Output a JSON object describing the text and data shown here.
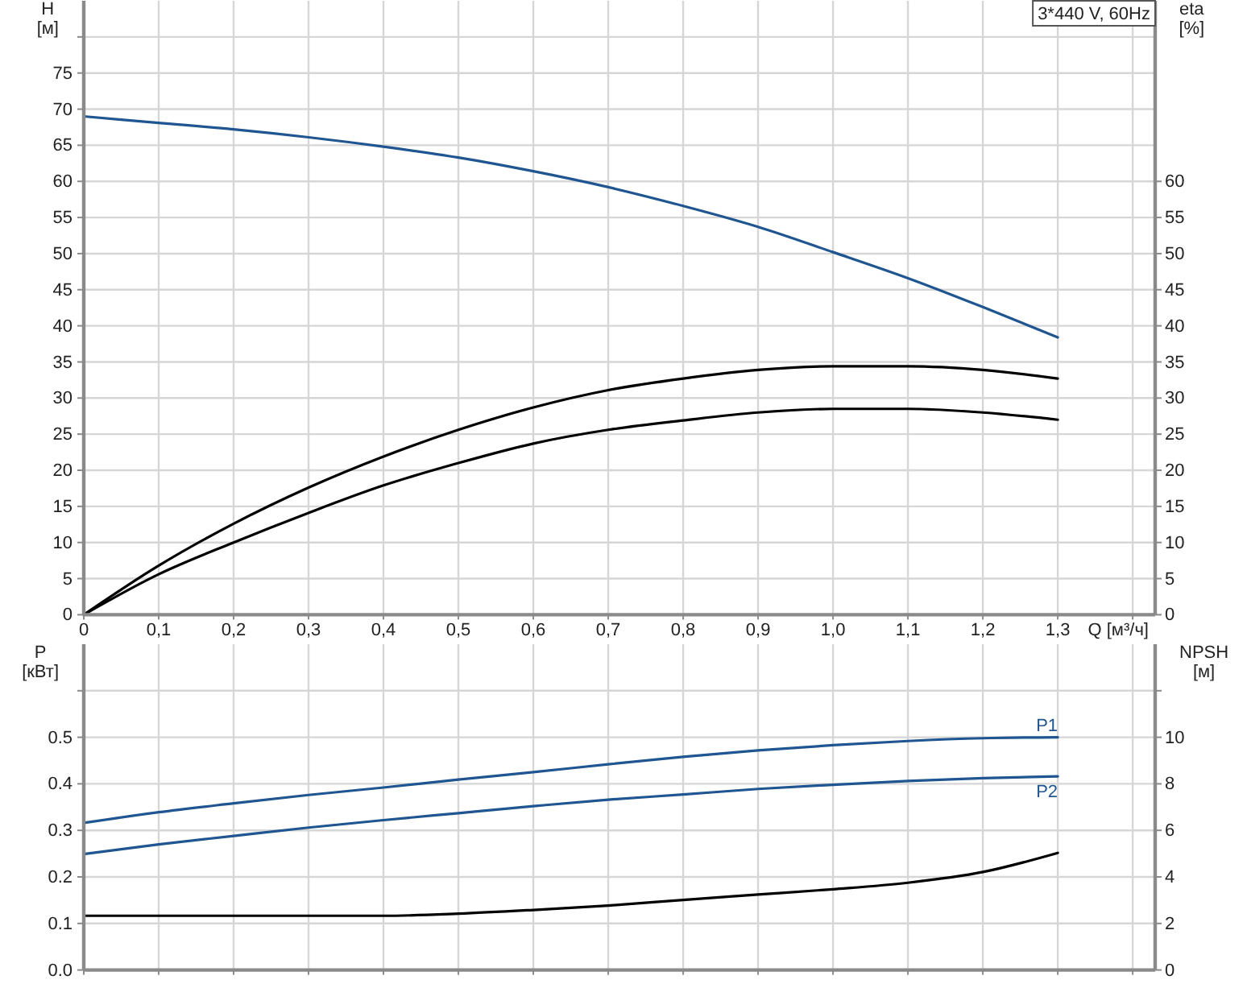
{
  "chart_data": [
    {
      "type": "line",
      "xlabel": "Q [м³/ч]",
      "ylabel": "H [м]",
      "y2label": "eta [%]",
      "annotations": [
        "3*440 V, 60Hz"
      ],
      "x": [
        0,
        0.1,
        0.2,
        0.3,
        0.4,
        0.5,
        0.6,
        0.7,
        0.8,
        0.9,
        1.0,
        1.1,
        1.2,
        1.3
      ],
      "xlim": [
        0,
        1.43
      ],
      "xticks": [
        0,
        {
          "value": 0.1,
          "label": "0,1"
        },
        {
          "value": 0.2,
          "label": "0,2"
        },
        {
          "value": 0.3,
          "label": "0,3"
        },
        {
          "value": 0.4,
          "label": "0,4"
        },
        {
          "value": 0.5,
          "label": "0,5"
        },
        {
          "value": 0.6,
          "label": "0,6"
        },
        {
          "value": 0.7,
          "label": "0,7"
        },
        {
          "value": 0.8,
          "label": "0,8"
        },
        {
          "value": 0.9,
          "label": "0,9"
        },
        {
          "value": 1.0,
          "label": "1,0"
        },
        {
          "value": 1.1,
          "label": "1,1"
        },
        {
          "value": 1.2,
          "label": "1,2"
        },
        {
          "value": 1.3,
          "label": "1,3"
        },
        {
          "value": 1.4,
          "label": null
        }
      ],
      "ylim": [
        0,
        85
      ],
      "yticks": [
        0,
        5,
        10,
        15,
        20,
        25,
        30,
        35,
        40,
        45,
        50,
        55,
        60,
        65,
        70,
        75,
        {
          "value": 80,
          "label": null
        }
      ],
      "y2lim": [
        0,
        85
      ],
      "y2ticks": [
        0,
        5,
        10,
        15,
        20,
        25,
        30,
        35,
        40,
        45,
        50,
        55,
        60
      ],
      "grid": true,
      "series": [
        {
          "color": "#1f5590",
          "values": [
            69.0,
            68.1,
            67.2,
            66.1,
            64.8,
            63.3,
            61.4,
            59.2,
            56.6,
            53.7,
            50.2,
            46.6,
            42.6,
            38.4
          ]
        },
        {
          "color": "#000000",
          "axis": "y2",
          "values": [
            0,
            6.8,
            12.6,
            17.6,
            21.9,
            25.6,
            28.7,
            31.1,
            32.7,
            33.9,
            34.4,
            34.4,
            33.9,
            32.7
          ]
        },
        {
          "color": "#000000",
          "axis": "y2",
          "values": [
            0,
            5.6,
            10.0,
            14.1,
            17.9,
            21.0,
            23.7,
            25.6,
            26.9,
            28.0,
            28.5,
            28.5,
            28.0,
            27.0
          ]
        }
      ]
    },
    {
      "type": "line",
      "ylabel": "P [кВт]",
      "y2label": "NPSH [м]",
      "x": [
        0,
        0.1,
        0.2,
        0.3,
        0.4,
        0.5,
        0.6,
        0.7,
        0.8,
        0.9,
        1.0,
        1.1,
        1.2,
        1.3
      ],
      "xlim": [
        0,
        1.43
      ],
      "xticks": [
        0,
        0.1,
        0.2,
        0.3,
        0.4,
        0.5,
        0.6,
        0.7,
        0.8,
        0.9,
        1.0,
        1.1,
        1.2,
        1.3,
        1.4
      ],
      "ylim": [
        0,
        0.7
      ],
      "yticks": [
        {
          "value": 0,
          "label": "0.0"
        },
        0.1,
        0.2,
        0.3,
        0.4,
        0.5,
        {
          "value": 0.6,
          "label": null
        }
      ],
      "y2lim": [
        0,
        14
      ],
      "y2ticks": [
        0,
        2,
        4,
        6,
        8,
        10,
        {
          "value": 12,
          "label": null
        }
      ],
      "grid": true,
      "tick_labels": "y",
      "series": [
        {
          "name": "P1",
          "color": "#1f5590",
          "values": [
            0.316,
            0.339,
            0.358,
            0.376,
            0.392,
            0.409,
            0.425,
            0.442,
            0.458,
            0.472,
            0.483,
            0.492,
            0.498,
            0.5
          ]
        },
        {
          "name": "P2",
          "color": "#1f5590",
          "values": [
            0.249,
            0.27,
            0.288,
            0.306,
            0.322,
            0.337,
            0.352,
            0.366,
            0.377,
            0.389,
            0.398,
            0.406,
            0.412,
            0.416
          ]
        },
        {
          "color": "#000000",
          "axis": "y2",
          "values": [
            2.33,
            2.33,
            2.33,
            2.33,
            2.33,
            2.42,
            2.58,
            2.77,
            3.01,
            3.24,
            3.47,
            3.75,
            4.21,
            5.03
          ]
        }
      ]
    }
  ]
}
